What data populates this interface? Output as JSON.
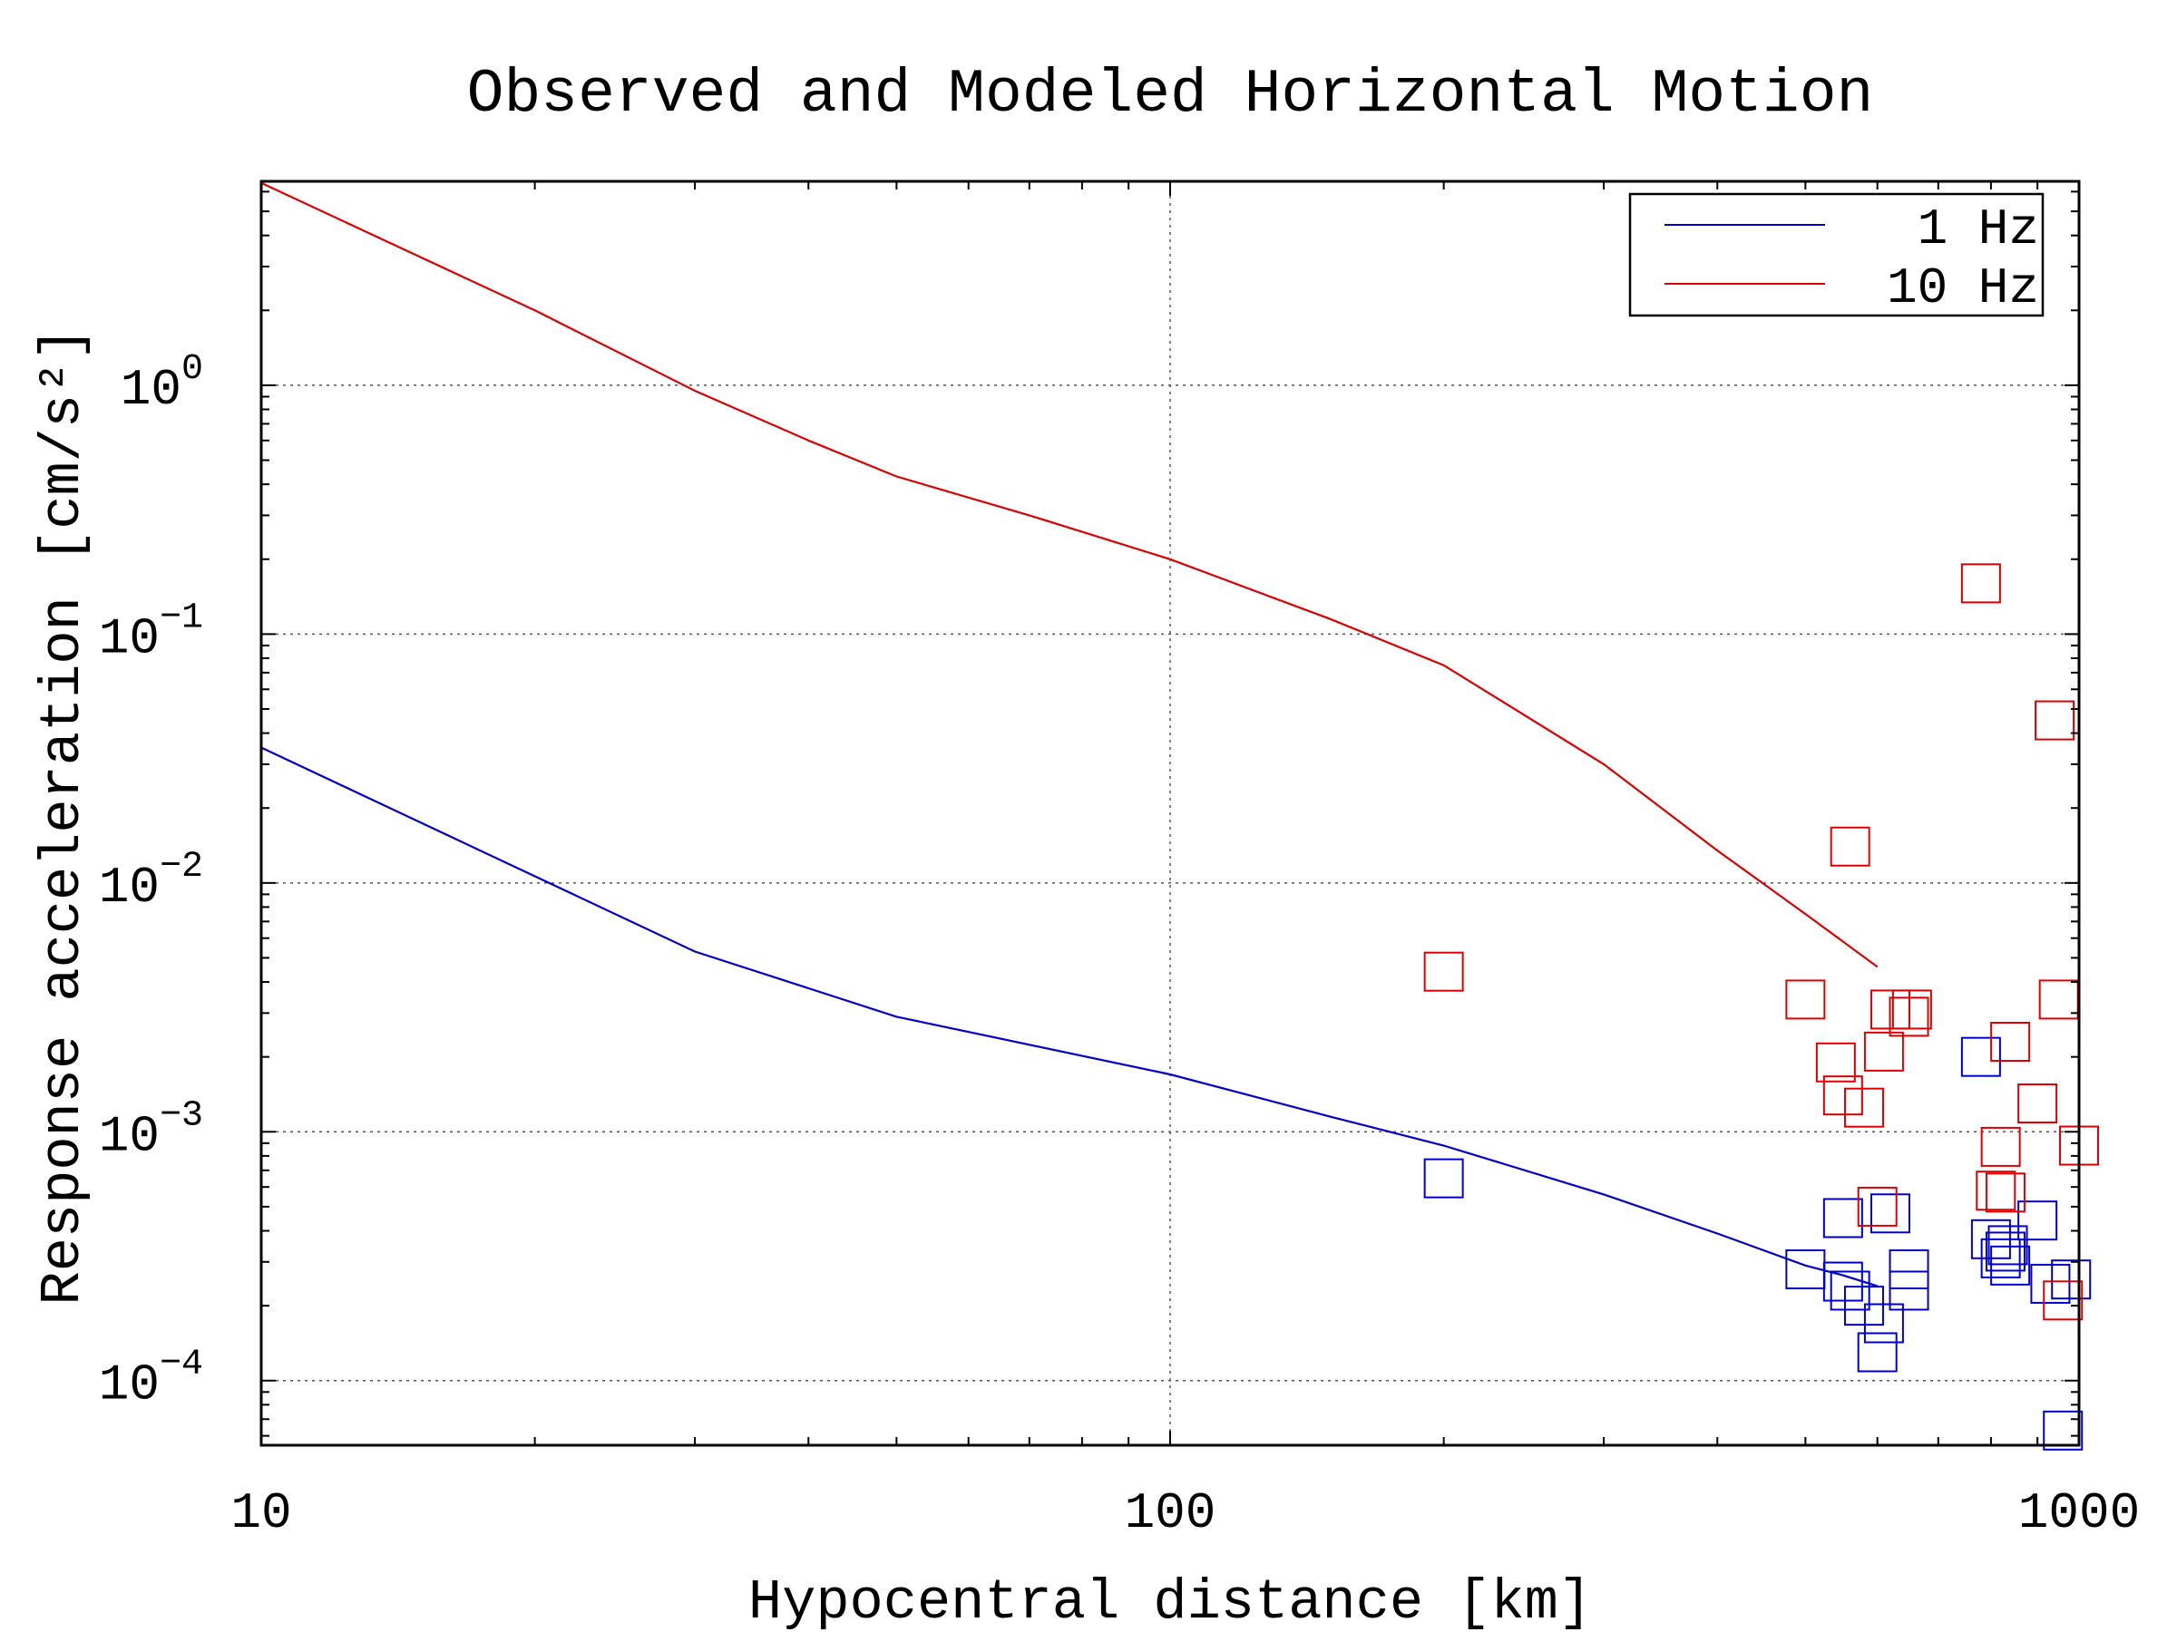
{
  "chart_data": {
    "type": "scatter",
    "title": "Observed and Modeled Horizontal Motion",
    "xlabel": "Hypocentral distance [km]",
    "ylabel": "Response acceleration [cm/s²]",
    "xscale": "log",
    "yscale": "log",
    "xlim": [
      10,
      1000
    ],
    "ylim": [
      5.5e-05,
      6.6
    ],
    "xticks": [
      {
        "value": 10,
        "label": "10"
      },
      {
        "value": 100,
        "label": "100"
      },
      {
        "value": 1000,
        "label": "1000"
      }
    ],
    "yticks": [
      {
        "value": 1,
        "base": "10",
        "exp": "0"
      },
      {
        "value": 0.1,
        "base": "10",
        "exp": "−1"
      },
      {
        "value": 0.01,
        "base": "10",
        "exp": "−2"
      },
      {
        "value": 0.001,
        "base": "10",
        "exp": "−3"
      },
      {
        "value": 0.0001,
        "base": "10",
        "exp": "−4"
      }
    ],
    "grid": true,
    "legend_position": "top-right",
    "series": [
      {
        "name": "1 Hz",
        "color": "#0000cc",
        "model": {
          "x": [
            10,
            30,
            50,
            100,
            150,
            200,
            300,
            400,
            500,
            550,
            600
          ],
          "y": [
            0.035,
            0.0053,
            0.0029,
            0.0017,
            0.00115,
            0.00088,
            0.00056,
            0.00039,
            0.00029,
            0.000265,
            0.00024
          ]
        },
        "observed": {
          "x": [
            200,
            500,
            550,
            550,
            560,
            580,
            600,
            610,
            620,
            650,
            650,
            780,
            800,
            820,
            830,
            835,
            840,
            900,
            930,
            960,
            980
          ],
          "y": [
            0.00065,
            0.00028,
            0.00045,
            0.00025,
            0.00023,
            0.0002,
            0.00013,
            0.00017,
            0.00047,
            0.00028,
            0.00023,
            0.002,
            0.00037,
            0.00031,
            0.00033,
            0.00035,
            0.00029,
            0.00044,
            0.000245,
            6.3e-05,
            0.000255
          ]
        }
      },
      {
        "name": "10 Hz",
        "color": "#dd0000",
        "model": {
          "x": [
            10,
            20,
            30,
            40,
            50,
            70,
            100,
            150,
            200,
            300,
            400,
            500,
            600
          ],
          "y": [
            6.5,
            2.0,
            0.95,
            0.6,
            0.43,
            0.3,
            0.2,
            0.115,
            0.075,
            0.03,
            0.0135,
            0.0075,
            0.0046
          ]
        },
        "observed": {
          "x": [
            200,
            500,
            540,
            550,
            560,
            580,
            600,
            610,
            620,
            650,
            655,
            780,
            810,
            820,
            830,
            840,
            900,
            940,
            950,
            960,
            1000
          ],
          "y": [
            0.0044,
            0.0034,
            0.0019,
            0.0014,
            0.014,
            0.00125,
            0.0005,
            0.0021,
            0.0031,
            0.0029,
            0.0031,
            0.16,
            0.00058,
            0.00087,
            0.00057,
            0.0023,
            0.0013,
            0.045,
            0.0034,
            0.00021,
            0.00088
          ]
        }
      }
    ]
  }
}
